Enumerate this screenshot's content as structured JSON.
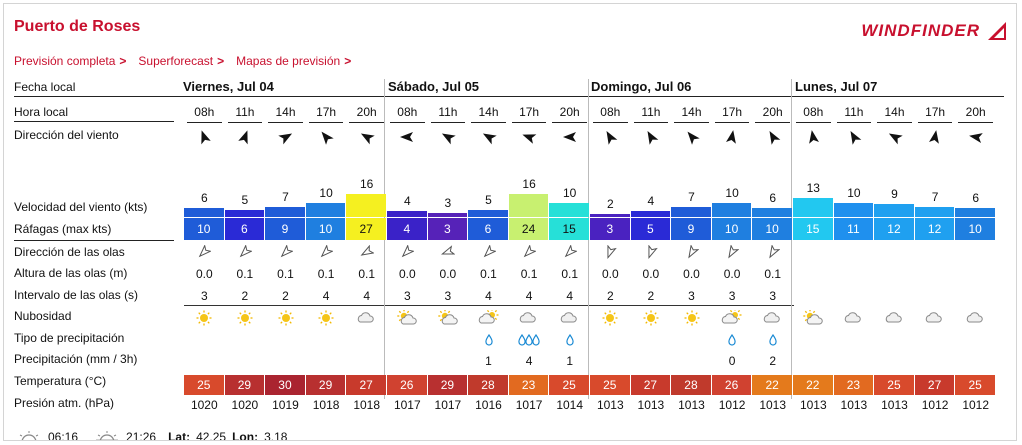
{
  "page_title": "Puerto de Roses",
  "nav": [
    {
      "label": "Previsión completa"
    },
    {
      "label": "Superforecast"
    },
    {
      "label": "Mapas de previsión"
    }
  ],
  "nav_chevron": ">",
  "brand": "WINDFINDER",
  "row_labels": {
    "fecha": "Fecha local",
    "hora": "Hora local",
    "direccion_viento": "Dirección del viento",
    "velocidad": "Velocidad del viento (kts)",
    "rafagas": "Ráfagas (max kts)",
    "direccion_olas": "Dirección de las olas",
    "altura_olas": "Altura de las olas (m)",
    "intervalo_olas": "Intervalo de las olas (s)",
    "nubosidad": "Nubosidad",
    "tipo_precip": "Tipo de precipitación",
    "precip": "Precipitación (mm / 3h)",
    "temperatura": "Temperatura (°C)",
    "presion": "Presión atm. (hPa)"
  },
  "days": [
    {
      "name": "Viernes, Jul 04"
    },
    {
      "name": "Sábado, Jul 05"
    },
    {
      "name": "Domingo, Jul 06"
    },
    {
      "name": "Lunes, Jul 07"
    }
  ],
  "hours": [
    "08h",
    "11h",
    "14h",
    "17h",
    "20h",
    "08h",
    "11h",
    "14h",
    "17h",
    "20h",
    "08h",
    "11h",
    "14h",
    "17h",
    "20h",
    "08h",
    "11h",
    "14h",
    "17h",
    "20h"
  ],
  "wind_dir_deg": [
    340,
    20,
    60,
    320,
    300,
    270,
    300,
    300,
    290,
    270,
    330,
    330,
    320,
    10,
    330,
    350,
    330,
    300,
    10,
    280
  ],
  "wind_speed": [
    "6",
    "5",
    "7",
    "10",
    "16",
    "4",
    "3",
    "5",
    "16",
    "10",
    "2",
    "4",
    "7",
    "10",
    "6",
    "13",
    "10",
    "9",
    "7",
    "6"
  ],
  "wind_speed_values": [
    6,
    5,
    7,
    10,
    16,
    4,
    3,
    5,
    16,
    10,
    2,
    4,
    7,
    10,
    6,
    13,
    10,
    9,
    7,
    6
  ],
  "gusts": [
    "10",
    "6",
    "9",
    "10",
    "27",
    "4",
    "3",
    "6",
    "24",
    "15",
    "3",
    "5",
    "9",
    "10",
    "10",
    "15",
    "11",
    "12",
    "12",
    "10"
  ],
  "gust_colors": [
    "#1f5cd8",
    "#2a2ad6",
    "#1f5cd8",
    "#1f7fe0",
    "#f5f020",
    "#3a22c8",
    "#5622b8",
    "#1f5cd8",
    "#c8f070",
    "#26e0d8",
    "#4a22c0",
    "#2a2ad6",
    "#1f5cd8",
    "#1f7fe0",
    "#1f7fe0",
    "#22c8f0",
    "#1f90ee",
    "#1fa0f0",
    "#1fa0f0",
    "#1f7fe0"
  ],
  "wave_dir_deg": [
    225,
    225,
    225,
    225,
    240,
    225,
    250,
    225,
    225,
    225,
    200,
    200,
    210,
    210,
    210
  ],
  "wave_height": [
    "0.0",
    "0.1",
    "0.1",
    "0.1",
    "0.1",
    "0.0",
    "0.0",
    "0.1",
    "0.1",
    "0.1",
    "0.0",
    "0.0",
    "0.0",
    "0.0",
    "0.1"
  ],
  "wave_interval": [
    "3",
    "2",
    "2",
    "4",
    "4",
    "3",
    "3",
    "4",
    "4",
    "4",
    "2",
    "2",
    "3",
    "3",
    "3"
  ],
  "cloud": [
    "sun",
    "sun",
    "sun",
    "sun",
    "cloud",
    "suncloud",
    "suncloud",
    "cloudsun",
    "cloud",
    "cloud",
    "sun",
    "sun",
    "sun",
    "cloudsun",
    "cloud",
    "suncloud",
    "cloud",
    "cloud",
    "cloud",
    "cloud"
  ],
  "precip_type": [
    "",
    "",
    "",
    "",
    "",
    "",
    "",
    "drop",
    "drops",
    "drop",
    "",
    "",
    "",
    "drop",
    "drop",
    "",
    "",
    "",
    "",
    ""
  ],
  "precip": [
    "",
    "",
    "",
    "",
    "",
    "",
    "",
    "1",
    "4",
    "1",
    "",
    "",
    "",
    "0",
    "2",
    "",
    "",
    "",
    "",
    ""
  ],
  "temperature": [
    "25",
    "29",
    "30",
    "29",
    "27",
    "26",
    "29",
    "28",
    "23",
    "25",
    "25",
    "27",
    "28",
    "26",
    "22",
    "22",
    "23",
    "25",
    "27",
    "25"
  ],
  "temp_colors": [
    "#d84a2c",
    "#b83030",
    "#aa2430",
    "#b83030",
    "#c83a2c",
    "#d04230",
    "#b83030",
    "#c03a2c",
    "#e26a20",
    "#d84a2c",
    "#d84a2c",
    "#c83a2c",
    "#c03a2c",
    "#d04230",
    "#e47a1c",
    "#e47a1c",
    "#e26a20",
    "#d84a2c",
    "#c83a2c",
    "#d84a2c"
  ],
  "pressure": [
    "1020",
    "1020",
    "1019",
    "1018",
    "1018",
    "1017",
    "1017",
    "1016",
    "1017",
    "1014",
    "1013",
    "1013",
    "1013",
    "1012",
    "1013",
    "1013",
    "1013",
    "1013",
    "1012",
    "1012"
  ],
  "footer": {
    "sunrise": "06:16",
    "sunset": "21:26",
    "lat_label": "Lat:",
    "lat": "42.25",
    "lon_label": "Lon:",
    "lon": "3.18"
  },
  "colors": {
    "brand_red": "#c8102e",
    "bar_blue": "#2a44d8"
  }
}
